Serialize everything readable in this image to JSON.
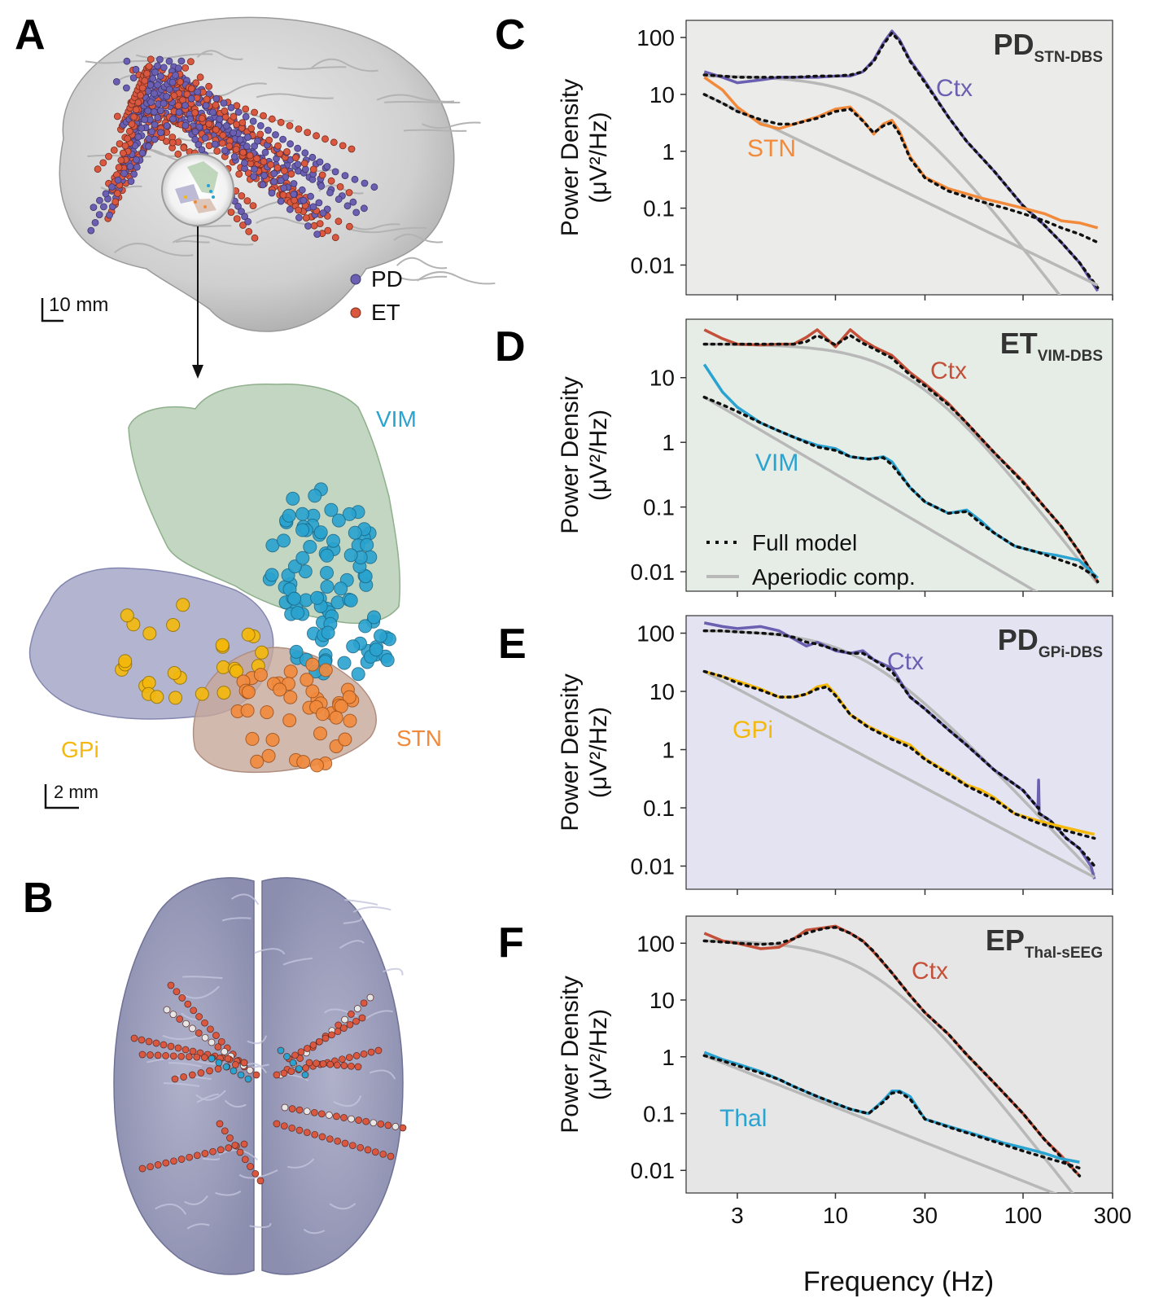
{
  "colors": {
    "pd": "#6a5fb0",
    "et": "#d9583f",
    "vim": "#2aa3d0",
    "stn": "#f28a3c",
    "gpi": "#f5b90c",
    "thal": "#2aa3d0",
    "ctx_et": "#c4503a",
    "ctx_pd": "#6a5fb0",
    "bg_c": "#ebebea",
    "bg_d": "#e6ede6",
    "bg_e": "#e3e3f2",
    "bg_f": "#e6e6e6",
    "aperiodic": "#b8b8b8",
    "model": "#111111"
  },
  "panel_a": {
    "label": "A",
    "legend": [
      {
        "label": "PD",
        "color": "#6a5fb0"
      },
      {
        "label": "ET",
        "color": "#d9583f"
      }
    ],
    "scale_top": "10 mm",
    "scale_bottom": "2 mm",
    "structures": [
      {
        "label": "VIM",
        "color": "#2aa3d0"
      },
      {
        "label": "GPi",
        "color": "#f5b90c"
      },
      {
        "label": "STN",
        "color": "#f28a3c"
      }
    ]
  },
  "panel_b": {
    "label": "B"
  },
  "shared_axes": {
    "ylabel_line1": "Power Density",
    "ylabel_line2": "(μV²/Hz)",
    "xlabel": "Frequency (Hz)",
    "xscale": "log",
    "yscale": "log",
    "xlim": [
      1.6,
      300
    ],
    "xticks": [
      3,
      10,
      30,
      100,
      300
    ],
    "xtick_labels": [
      "3",
      "10",
      "30",
      "100",
      "300"
    ],
    "legend_model": "Full model",
    "legend_aperiodic": "Aperiodic comp."
  },
  "chart_data": [
    {
      "type": "line",
      "panel": "C",
      "title_main": "PD",
      "title_sub": "STN-DBS",
      "xlabel": "Frequency (Hz)",
      "ylabel": "Power Density (μV²/Hz)",
      "ylim": [
        0.003,
        200
      ],
      "yticks": [
        0.01,
        0.1,
        1,
        10,
        100
      ],
      "ytick_labels": [
        "0.01",
        "0.1",
        "1",
        "10",
        "100"
      ],
      "series": [
        {
          "name": "Ctx",
          "color": "#6a5fb0",
          "x": [
            2,
            2.5,
            3,
            4,
            5,
            6,
            8,
            10,
            12,
            14,
            16,
            18,
            20,
            22,
            25,
            30,
            40,
            50,
            70,
            100,
            130,
            160,
            200,
            250
          ],
          "y": [
            25,
            20,
            16,
            18,
            20,
            20,
            20,
            21,
            21,
            25,
            40,
            80,
            130,
            90,
            40,
            17,
            4,
            1.5,
            0.45,
            0.11,
            0.05,
            0.025,
            0.011,
            0.0035
          ],
          "model": [
            22,
            21,
            20,
            20,
            20,
            20,
            21,
            21,
            22,
            25,
            38,
            75,
            120,
            85,
            38,
            16,
            4,
            1.5,
            0.45,
            0.11,
            0.05,
            0.025,
            0.011,
            0.004
          ],
          "aperiodic_knee": 20,
          "aperiodic_offset": 21,
          "aperiodic_exp": 4.3
        },
        {
          "name": "STN",
          "color": "#f28a3c",
          "x": [
            2,
            2.5,
            3,
            4,
            5,
            6,
            8,
            10,
            12,
            14,
            16,
            18,
            20,
            22,
            25,
            30,
            40,
            60,
            80,
            100,
            130,
            160,
            200,
            250
          ],
          "y": [
            20,
            12,
            6,
            3,
            2.5,
            3,
            4,
            5.5,
            6,
            3.5,
            2,
            3,
            3.5,
            2.2,
            0.8,
            0.35,
            0.22,
            0.15,
            0.12,
            0.1,
            0.08,
            0.06,
            0.055,
            0.045
          ],
          "model": [
            10,
            7,
            5,
            3.6,
            3,
            3,
            3.8,
            5,
            5.5,
            3.4,
            2.1,
            2.8,
            3.2,
            2,
            0.75,
            0.34,
            0.2,
            0.13,
            0.1,
            0.08,
            0.06,
            0.045,
            0.035,
            0.025
          ],
          "aperiodic_knee": 0,
          "aperiodic_offset": 10,
          "aperiodic_exp": 1.6
        }
      ]
    },
    {
      "type": "line",
      "panel": "D",
      "title_main": "ET",
      "title_sub": "VIM-DBS",
      "xlabel": "Frequency (Hz)",
      "ylabel": "Power Density (μV²/Hz)",
      "ylim": [
        0.005,
        80
      ],
      "yticks": [
        0.01,
        0.1,
        1,
        10
      ],
      "ytick_labels": [
        "0.01",
        "0.1",
        "1",
        "10"
      ],
      "series": [
        {
          "name": "Ctx",
          "color": "#c4503a",
          "x": [
            2,
            2.5,
            3,
            4,
            5,
            6,
            7,
            8,
            9,
            10,
            12,
            14,
            16,
            20,
            25,
            30,
            40,
            50,
            70,
            100,
            130,
            160,
            200,
            250
          ],
          "y": [
            55,
            40,
            33,
            32,
            33,
            33,
            42,
            55,
            40,
            30,
            55,
            38,
            30,
            22,
            12,
            8,
            4,
            2,
            0.7,
            0.25,
            0.1,
            0.05,
            0.02,
            0.007
          ],
          "model": [
            33,
            33,
            33,
            33,
            33,
            33,
            36,
            45,
            38,
            32,
            45,
            34,
            28,
            20,
            11,
            7.5,
            3.8,
            2,
            0.7,
            0.24,
            0.1,
            0.05,
            0.02,
            0.007
          ],
          "aperiodic_knee": 25,
          "aperiodic_offset": 33,
          "aperiodic_exp": 3.7
        },
        {
          "name": "VIM",
          "color": "#2aa3d0",
          "x": [
            2,
            2.5,
            3,
            4,
            5,
            6,
            8,
            10,
            12,
            15,
            18,
            20,
            25,
            30,
            40,
            50,
            60,
            70,
            90,
            120,
            150,
            200,
            250
          ],
          "y": [
            16,
            6,
            3.5,
            2,
            1.5,
            1.2,
            0.9,
            0.8,
            0.6,
            0.55,
            0.6,
            0.5,
            0.2,
            0.12,
            0.08,
            0.09,
            0.06,
            0.04,
            0.025,
            0.02,
            0.018,
            0.015,
            0.008
          ],
          "model": [
            5,
            3.8,
            3,
            2,
            1.5,
            1.2,
            0.85,
            0.75,
            0.6,
            0.55,
            0.58,
            0.45,
            0.2,
            0.12,
            0.08,
            0.085,
            0.055,
            0.04,
            0.025,
            0.02,
            0.016,
            0.012,
            0.008
          ],
          "aperiodic_knee": 0,
          "aperiodic_offset": 5,
          "aperiodic_exp": 1.7
        }
      ]
    },
    {
      "type": "line",
      "panel": "E",
      "title_main": "PD",
      "title_sub": "GPi-DBS",
      "xlabel": "Frequency (Hz)",
      "ylabel": "Power Density (μV²/Hz)",
      "ylim": [
        0.004,
        200
      ],
      "yticks": [
        0.01,
        0.1,
        1,
        10,
        100
      ],
      "ytick_labels": [
        "0.01",
        "0.1",
        "1",
        "10",
        "100"
      ],
      "series": [
        {
          "name": "Ctx",
          "color": "#6a5fb0",
          "x": [
            2,
            2.5,
            3,
            4,
            5,
            6,
            7,
            8,
            10,
            12,
            14,
            16,
            20,
            25,
            30,
            40,
            50,
            70,
            100,
            120,
            121,
            122,
            140,
            170,
            200,
            230,
            240
          ],
          "y": [
            150,
            130,
            120,
            130,
            110,
            80,
            60,
            70,
            50,
            45,
            50,
            35,
            25,
            8,
            5,
            2.2,
            1.2,
            0.45,
            0.2,
            0.1,
            0.3,
            0.08,
            0.06,
            0.03,
            0.02,
            0.01,
            0.006
          ],
          "model": [
            110,
            110,
            105,
            100,
            95,
            85,
            70,
            65,
            52,
            45,
            45,
            35,
            22,
            8,
            5,
            2.2,
            1.2,
            0.45,
            0.2,
            0.1,
            0.1,
            0.08,
            0.06,
            0.03,
            0.02,
            0.012,
            0.01
          ],
          "aperiodic_knee": 14,
          "aperiodic_offset": 110,
          "aperiodic_exp": 3.4
        },
        {
          "name": "GPi",
          "color": "#f5b90c",
          "x": [
            2,
            2.5,
            3,
            4,
            5,
            6,
            7,
            8,
            9,
            10,
            12,
            15,
            20,
            25,
            30,
            40,
            50,
            60,
            70,
            90,
            120,
            150,
            200,
            240
          ],
          "y": [
            22,
            18,
            15,
            11,
            8,
            8,
            9,
            12,
            13,
            9,
            4,
            2.5,
            1.6,
            1.2,
            0.7,
            0.4,
            0.25,
            0.2,
            0.15,
            0.08,
            0.06,
            0.05,
            0.04,
            0.035
          ],
          "model": [
            22,
            18,
            14,
            10.5,
            8,
            8,
            9,
            11,
            12,
            8.5,
            4,
            2.4,
            1.5,
            1.1,
            0.68,
            0.38,
            0.24,
            0.18,
            0.14,
            0.08,
            0.055,
            0.045,
            0.035,
            0.03
          ],
          "aperiodic_knee": 0,
          "aperiodic_offset": 22,
          "aperiodic_exp": 1.7
        }
      ]
    },
    {
      "type": "line",
      "panel": "F",
      "title_main": "EP",
      "title_sub": "Thal-sEEG",
      "xlabel": "Frequency (Hz)",
      "ylabel": "Power Density (μV²/Hz)",
      "ylim": [
        0.004,
        300
      ],
      "yticks": [
        0.01,
        0.1,
        1,
        10,
        100
      ],
      "ytick_labels": [
        "0.01",
        "0.1",
        "1",
        "10",
        "100"
      ],
      "series": [
        {
          "name": "Ctx",
          "color": "#c4503a",
          "x": [
            2,
            2.5,
            3,
            4,
            5,
            6,
            7,
            8,
            9,
            10,
            12,
            14,
            16,
            20,
            25,
            30,
            40,
            50,
            70,
            100,
            130,
            160,
            200
          ],
          "y": [
            150,
            110,
            100,
            80,
            85,
            120,
            170,
            180,
            190,
            200,
            150,
            110,
            70,
            30,
            12,
            6,
            2.5,
            1.1,
            0.35,
            0.1,
            0.035,
            0.018,
            0.008
          ],
          "model": [
            110,
            105,
            100,
            95,
            100,
            120,
            150,
            170,
            185,
            190,
            150,
            108,
            72,
            30,
            12,
            6,
            2.5,
            1.1,
            0.35,
            0.1,
            0.035,
            0.017,
            0.008
          ],
          "aperiodic_knee": 16,
          "aperiodic_offset": 110,
          "aperiodic_exp": 4.2
        },
        {
          "name": "Thal",
          "color": "#2aa3d0",
          "x": [
            2,
            2.5,
            3,
            4,
            5,
            6,
            8,
            10,
            12,
            15,
            18,
            20,
            22,
            25,
            30,
            40,
            60,
            80,
            100,
            130,
            160,
            200
          ],
          "y": [
            1.2,
            0.9,
            0.75,
            0.55,
            0.4,
            0.3,
            0.2,
            0.15,
            0.12,
            0.1,
            0.17,
            0.25,
            0.25,
            0.2,
            0.08,
            0.06,
            0.04,
            0.03,
            0.025,
            0.02,
            0.016,
            0.014
          ],
          "model": [
            1.05,
            0.85,
            0.7,
            0.52,
            0.4,
            0.3,
            0.2,
            0.15,
            0.12,
            0.1,
            0.16,
            0.23,
            0.24,
            0.18,
            0.08,
            0.058,
            0.038,
            0.028,
            0.022,
            0.017,
            0.014,
            0.011
          ],
          "aperiodic_knee": 0,
          "aperiodic_offset": 1.05,
          "aperiodic_exp": 1.3
        }
      ]
    }
  ]
}
